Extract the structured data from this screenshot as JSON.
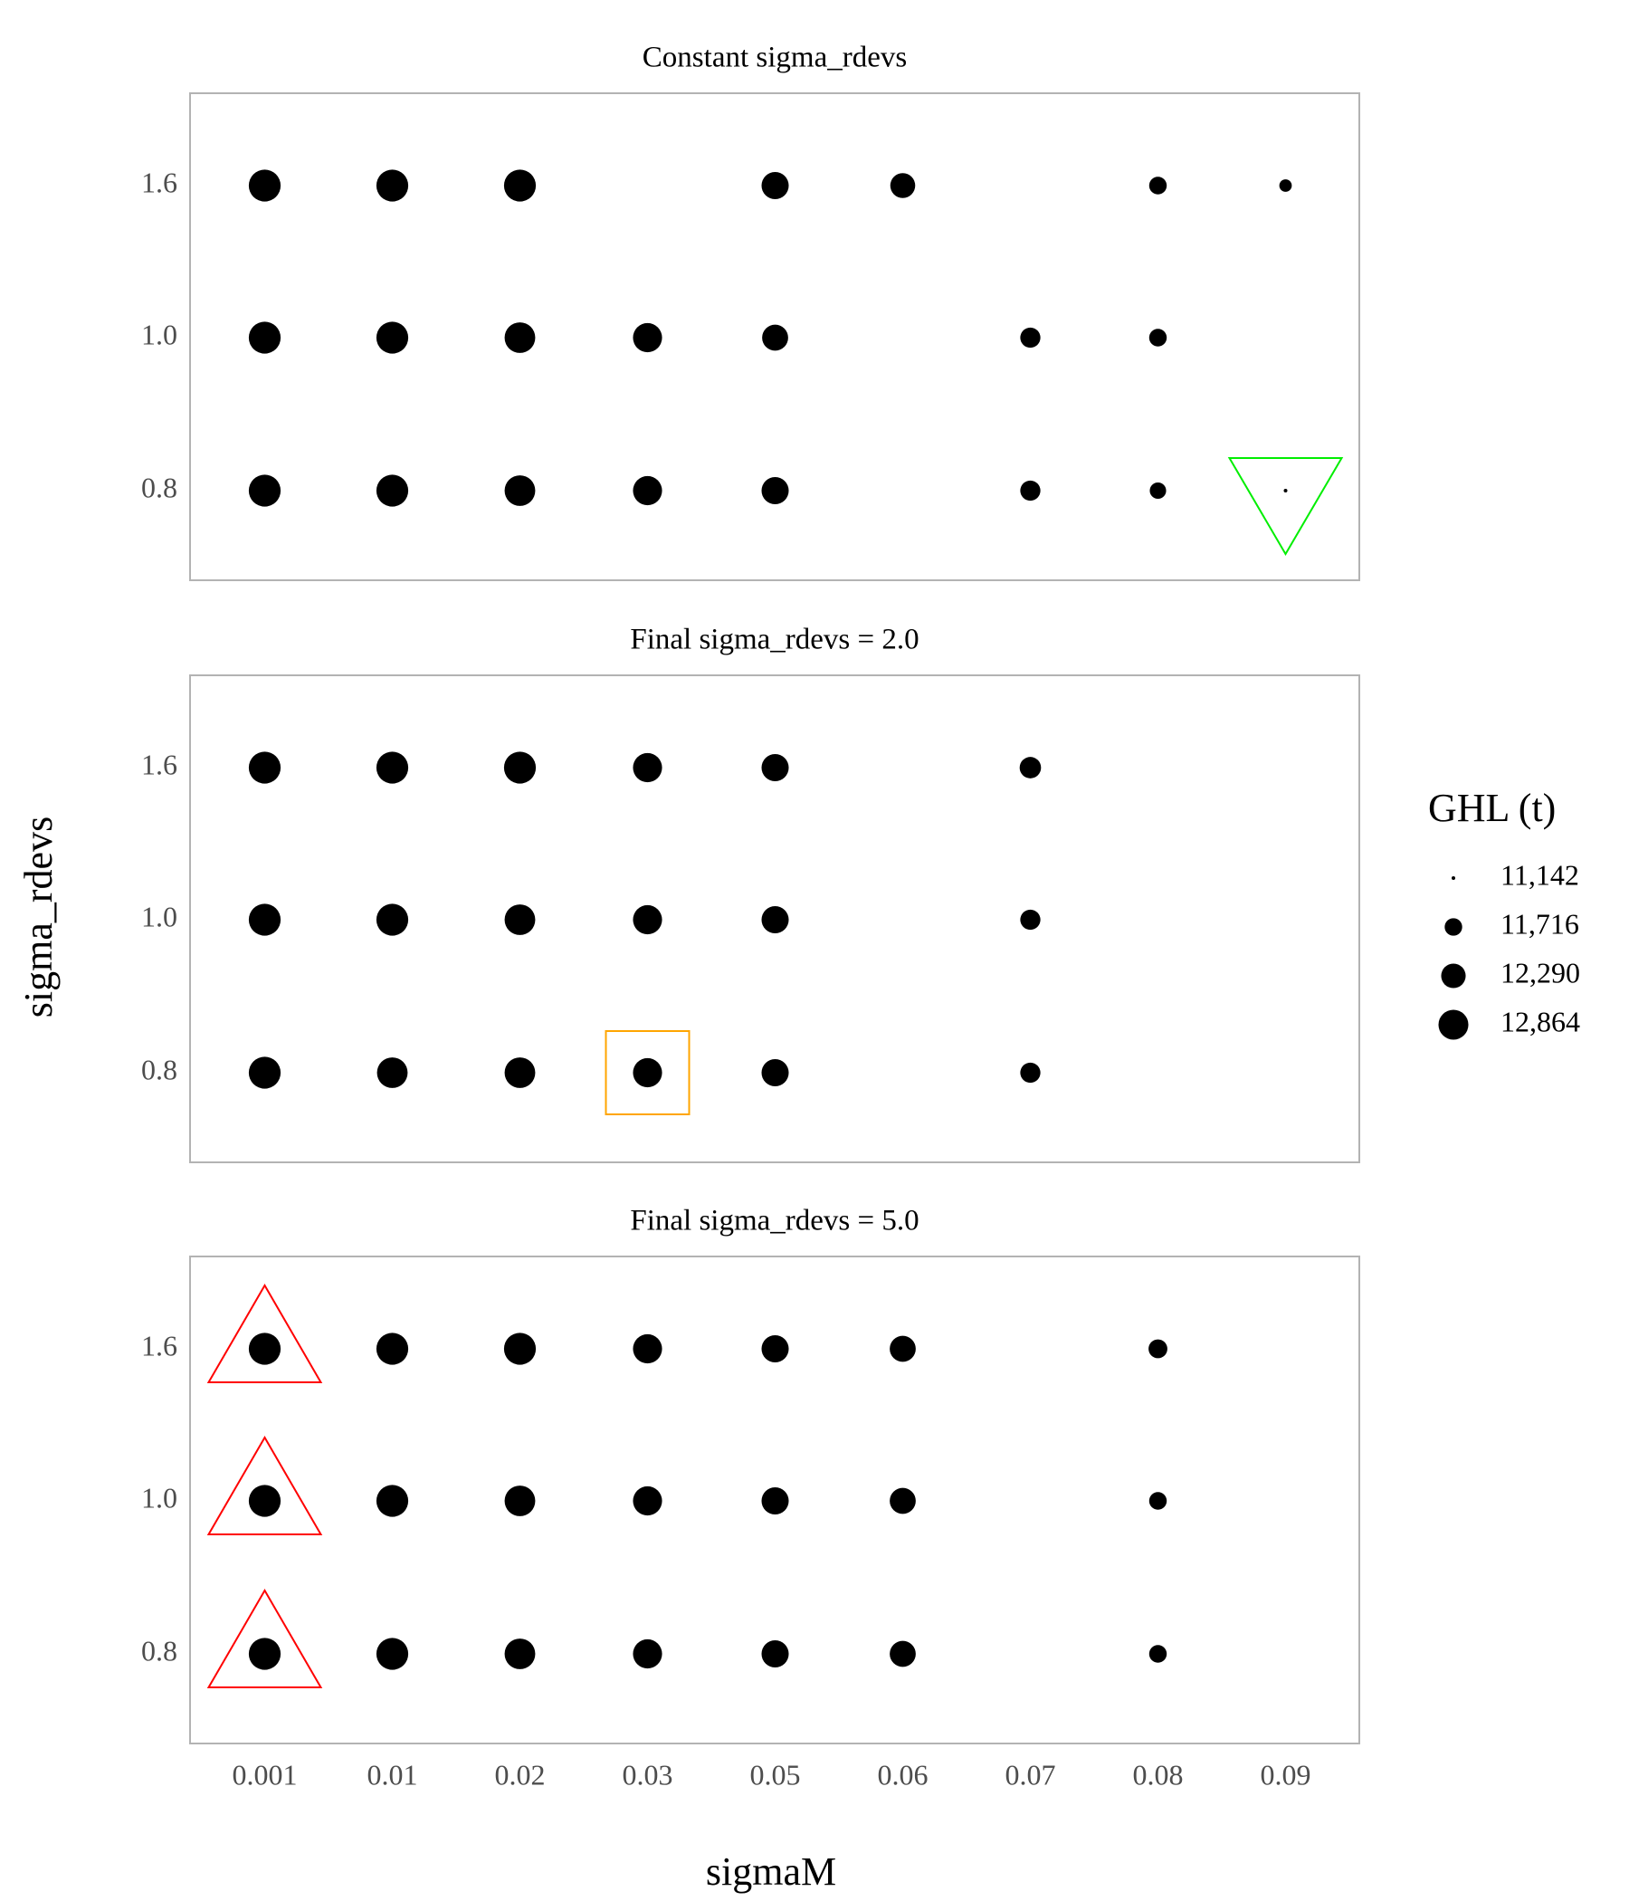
{
  "chart_data": {
    "type": "scatter",
    "x_label": "sigmaM",
    "y_label": "sigma_rdevs",
    "legend_title": "GHL (t)",
    "legend": [
      {
        "value": 11142,
        "label": "11,142"
      },
      {
        "value": 11716,
        "label": "11,716"
      },
      {
        "value": 12290,
        "label": "12,290"
      },
      {
        "value": 12864,
        "label": "12,864"
      }
    ],
    "categories": [
      "0.001",
      "0.01",
      "0.02",
      "0.03",
      "0.05",
      "0.06",
      "0.07",
      "0.08",
      "0.09"
    ],
    "rows": [
      "0.8",
      "1.0",
      "1.6"
    ],
    "color": "#000000",
    "panels": [
      {
        "title": "Constant sigma_rdevs",
        "values": [
          [
            13100,
            13100,
            12950,
            12770,
            12560,
            null,
            11910,
            11640,
            11142
          ],
          [
            13100,
            13100,
            12950,
            12770,
            12440,
            null,
            11910,
            11720,
            null
          ],
          [
            13100,
            13100,
            13100,
            null,
            12560,
            12330,
            null,
            11720,
            11420
          ]
        ],
        "highlights": [
          {
            "category": "0.09",
            "row": "0.8",
            "shape": "triangle-down",
            "color": "#00ee00"
          }
        ]
      },
      {
        "title": "Final sigma_rdevs = 2.0",
        "values": [
          [
            13100,
            12950,
            12950,
            12770,
            12560,
            null,
            11910,
            null,
            null
          ],
          [
            13100,
            13100,
            12950,
            12770,
            12560,
            null,
            11910,
            null,
            null
          ],
          [
            13100,
            13100,
            13100,
            12770,
            12560,
            null,
            12010,
            null,
            null
          ]
        ],
        "highlights": [
          {
            "category": "0.03",
            "row": "0.8",
            "shape": "square",
            "color": "#ffa500"
          }
        ]
      },
      {
        "title": "Final sigma_rdevs = 5.0",
        "values": [
          [
            13100,
            13100,
            12950,
            12770,
            12560,
            12440,
            null,
            11720,
            null
          ],
          [
            13100,
            13100,
            12950,
            12770,
            12560,
            12440,
            null,
            11720,
            null
          ],
          [
            13100,
            13100,
            13100,
            12770,
            12560,
            12440,
            null,
            11810,
            null
          ]
        ],
        "highlights": [
          {
            "category": "0.001",
            "row": "1.6",
            "shape": "triangle-up",
            "color": "#ff0000"
          },
          {
            "category": "0.001",
            "row": "1.0",
            "shape": "triangle-up",
            "color": "#ff0000"
          },
          {
            "category": "0.001",
            "row": "0.8",
            "shape": "triangle-up",
            "color": "#ff0000"
          }
        ]
      }
    ]
  }
}
